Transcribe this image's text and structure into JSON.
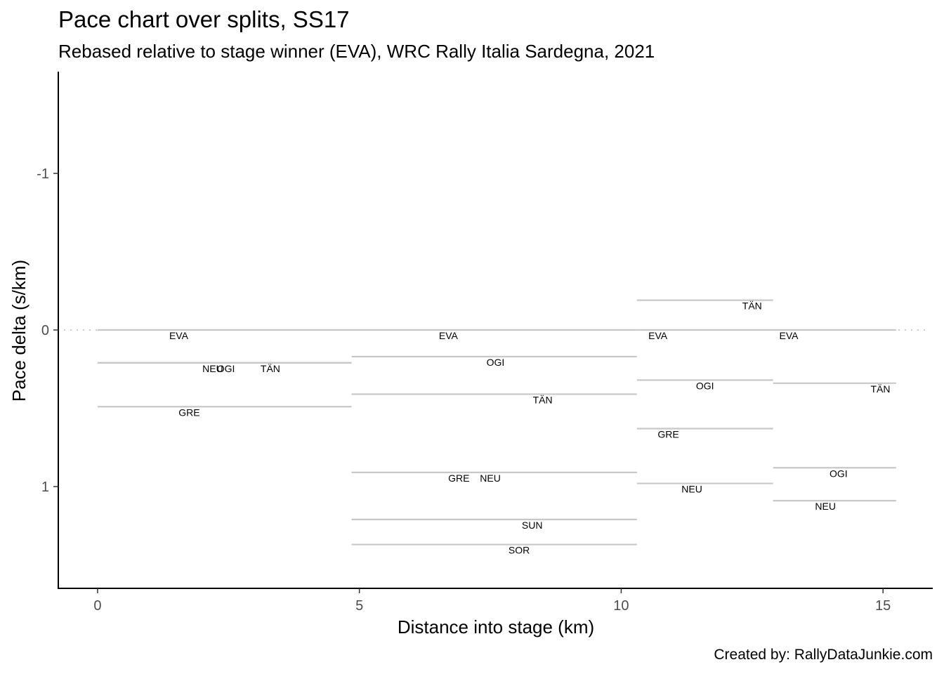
{
  "header": {
    "title": "Pace chart over splits, SS17",
    "subtitle": "Rebased relative to stage winner (EVA), WRC Rally Italia Sardegna, 2021"
  },
  "caption": "Created by: RallyDataJunkie.com",
  "colors": {
    "segment": "#c8c8c8",
    "reference_line": "#cccccc",
    "axis": "#000000",
    "tick_label": "#4d4d4d"
  },
  "chart_data": {
    "type": "line",
    "xlabel": "Distance into stage (km)",
    "ylabel": "Pace delta (s/km)",
    "xlim": [
      -0.75,
      15.95
    ],
    "ylim": [
      1.65,
      -1.65
    ],
    "y_reversed": true,
    "x_ticks": [
      0,
      5,
      10,
      15
    ],
    "x_tick_labels": [
      "0",
      "5",
      "10",
      "15"
    ],
    "y_ticks": [
      -1,
      0,
      1
    ],
    "y_tick_labels": [
      "-1",
      "0",
      "1"
    ],
    "reference_line": {
      "y": 0,
      "style": "dotted"
    },
    "grid": false,
    "legend": "none",
    "segments": [
      {
        "label": "EVA",
        "x_start": 0,
        "x_end": 4.85,
        "y": 0,
        "label_x": 1.55
      },
      {
        "label": "NEU",
        "x_start": 0,
        "x_end": 4.85,
        "y": 0.21,
        "label_x": 2.2
      },
      {
        "label": "OGI",
        "x_start": 0,
        "x_end": 4.85,
        "y": 0.21,
        "label_x": 2.45
      },
      {
        "label": "TÄN",
        "x_start": 0,
        "x_end": 4.85,
        "y": 0.21,
        "label_x": 3.3
      },
      {
        "label": "GRE",
        "x_start": 0,
        "x_end": 4.85,
        "y": 0.49,
        "label_x": 1.75
      },
      {
        "label": "EVA",
        "x_start": 4.85,
        "x_end": 10.3,
        "y": 0,
        "label_x": 6.7
      },
      {
        "label": "OGI",
        "x_start": 4.85,
        "x_end": 10.3,
        "y": 0.17,
        "label_x": 7.6
      },
      {
        "label": "TÄN",
        "x_start": 4.85,
        "x_end": 10.3,
        "y": 0.41,
        "label_x": 8.5
      },
      {
        "label": "GRE",
        "x_start": 4.85,
        "x_end": 10.3,
        "y": 0.91,
        "label_x": 6.9
      },
      {
        "label": "NEU",
        "x_start": 4.85,
        "x_end": 10.3,
        "y": 0.91,
        "label_x": 7.5
      },
      {
        "label": "SUN",
        "x_start": 4.85,
        "x_end": 10.3,
        "y": 1.21,
        "label_x": 8.3
      },
      {
        "label": "SOR",
        "x_start": 4.85,
        "x_end": 10.3,
        "y": 1.37,
        "label_x": 8.05
      },
      {
        "label": "TÄN",
        "x_start": 10.3,
        "x_end": 12.9,
        "y": -0.19,
        "label_x": 12.5
      },
      {
        "label": "EVA",
        "x_start": 10.3,
        "x_end": 12.9,
        "y": 0,
        "label_x": 10.7
      },
      {
        "label": "OGI",
        "x_start": 10.3,
        "x_end": 12.9,
        "y": 0.32,
        "label_x": 11.6
      },
      {
        "label": "GRE",
        "x_start": 10.3,
        "x_end": 12.9,
        "y": 0.63,
        "label_x": 10.9
      },
      {
        "label": "NEU",
        "x_start": 10.3,
        "x_end": 12.9,
        "y": 0.98,
        "label_x": 11.35
      },
      {
        "label": "EVA",
        "x_start": 12.9,
        "x_end": 15.25,
        "y": 0,
        "label_x": 13.2
      },
      {
        "label": "TÄN",
        "x_start": 12.9,
        "x_end": 15.25,
        "y": 0.34,
        "label_x": 14.95
      },
      {
        "label": "OGI",
        "x_start": 12.9,
        "x_end": 15.25,
        "y": 0.88,
        "label_x": 14.15
      },
      {
        "label": "NEU",
        "x_start": 12.9,
        "x_end": 15.25,
        "y": 1.09,
        "label_x": 13.9
      }
    ]
  }
}
